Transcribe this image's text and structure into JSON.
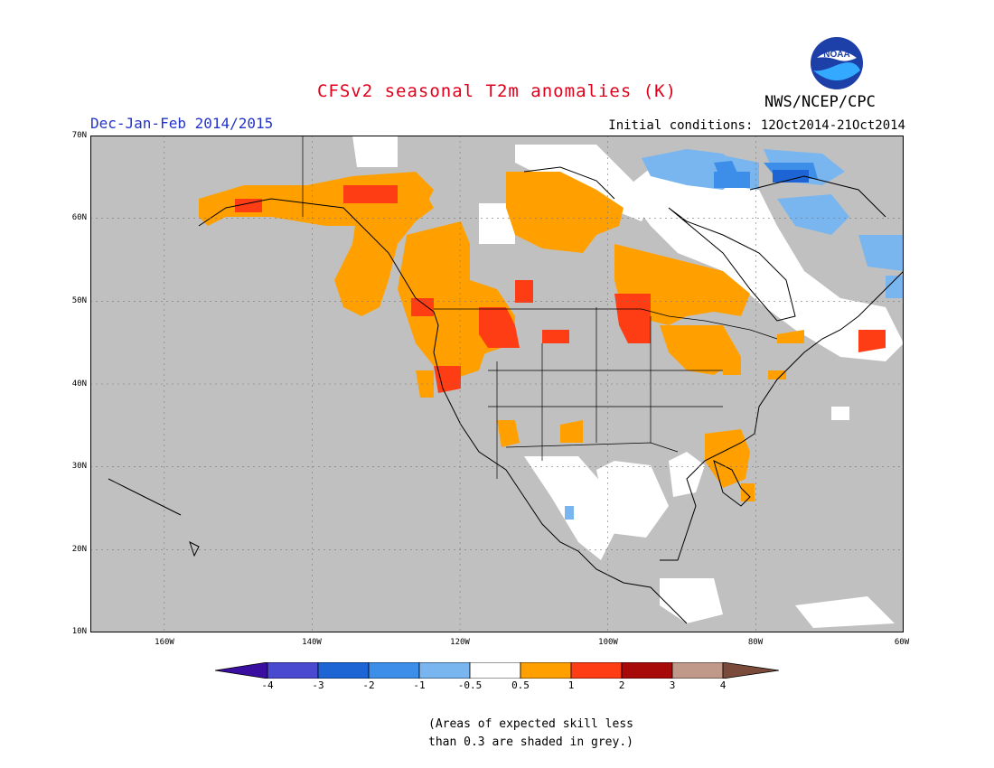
{
  "header": {
    "title": "CFSv2 seasonal T2m anomalies (K)",
    "season": "Dec-Jan-Feb 2014/2015",
    "initial_conditions": "Initial conditions: 12Oct2014-21Oct2014",
    "agency": "NWS/NCEP/CPC",
    "logo_text": "NOAA"
  },
  "map": {
    "lat_labels": [
      "70N",
      "60N",
      "50N",
      "40N",
      "30N",
      "20N",
      "10N"
    ],
    "lon_labels": [
      "160W",
      "140W",
      "120W",
      "100W",
      "80W",
      "60W"
    ],
    "colors": {
      "grey": "#c0c0c0",
      "white": "#ffffff",
      "light_blue": "#79b6ef",
      "mid_blue": "#3d8ee8",
      "dark_blue": "#1d64d5",
      "orange": "#ffa000",
      "red": "#ff3d14",
      "dark_red": "#a80a0a"
    }
  },
  "colorbar": {
    "labels": [
      "-4",
      "-3",
      "-2",
      "-1",
      "-0.5",
      "0.5",
      "1",
      "2",
      "3",
      "4"
    ],
    "colors": [
      "#3a0fa0",
      "#4a4ad0",
      "#1d64d5",
      "#3d8ee8",
      "#79b6ef",
      "#ffffff",
      "#ffa000",
      "#ff3d14",
      "#a80a0a",
      "#c0998a",
      "#7a4a3a"
    ]
  },
  "note": {
    "line1": "(Areas of expected skill less",
    "line2": "than 0.3 are shaded in grey.)"
  }
}
